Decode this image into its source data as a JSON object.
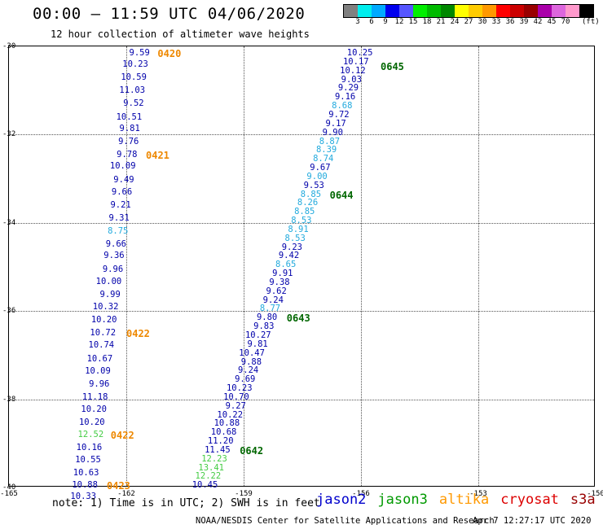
{
  "header": {
    "title": "00:00 – 11:59 UTC 04/06/2020",
    "subtitle": "12 hour collection of altimeter wave heights"
  },
  "color_scale": {
    "unit": "(ft)",
    "colors": [
      "#808080",
      "#00eeee",
      "#00aaff",
      "#0000ee",
      "#5555ff",
      "#00ee00",
      "#00bb00",
      "#008800",
      "#ffff00",
      "#ffcc00",
      "#ff9900",
      "#ff0000",
      "#cc0000",
      "#990000",
      "#aa00aa",
      "#dd66dd",
      "#ff99cc",
      "#000000"
    ],
    "labels": [
      "3",
      "6",
      "9",
      "12",
      "15",
      "18",
      "21",
      "24",
      "27",
      "30",
      "33",
      "36",
      "39",
      "42",
      "45",
      "70"
    ]
  },
  "map": {
    "lon_range": [
      -165,
      -150
    ],
    "lat_range": [
      -40,
      -30
    ],
    "lon_ticks": [
      "-165",
      "-162",
      "-159",
      "-156",
      "-153",
      "-150"
    ],
    "lat_ticks": [
      "-30",
      "-32",
      "-34",
      "-36",
      "-38",
      "-40"
    ],
    "colors": {
      "dark_blue": "#0000aa",
      "light_blue": "#22aadd",
      "green": "#44cc44",
      "orange": "#ee8800",
      "dark_green": "#006600"
    },
    "tracks": [
      {
        "satellite": "altika",
        "points": [
          {
            "lon": -161.4,
            "lat": -30.15,
            "v": "9.59",
            "c": "dark_blue"
          },
          {
            "lon": -161.44,
            "lat": -30.4,
            "v": "10.23",
            "c": "dark_blue"
          },
          {
            "lon": -161.48,
            "lat": -30.7,
            "v": "10.59",
            "c": "dark_blue"
          },
          {
            "lon": -161.52,
            "lat": -31.0,
            "v": "11.03",
            "c": "dark_blue"
          },
          {
            "lon": -161.55,
            "lat": -31.3,
            "v": "9.52",
            "c": "dark_blue"
          },
          {
            "lon": -161.6,
            "lat": -31.6,
            "v": "10.51",
            "c": "dark_blue"
          },
          {
            "lon": -161.65,
            "lat": -31.87,
            "v": "9.81",
            "c": "dark_blue"
          },
          {
            "lon": -161.68,
            "lat": -32.15,
            "v": "9.76",
            "c": "dark_blue"
          },
          {
            "lon": -161.72,
            "lat": -32.45,
            "v": "9.78",
            "c": "dark_blue"
          },
          {
            "lon": -161.76,
            "lat": -32.72,
            "v": "10.09",
            "c": "dark_blue"
          },
          {
            "lon": -161.8,
            "lat": -33.02,
            "v": "9.49",
            "c": "dark_blue"
          },
          {
            "lon": -161.85,
            "lat": -33.3,
            "v": "9.66",
            "c": "dark_blue"
          },
          {
            "lon": -161.88,
            "lat": -33.6,
            "v": "9.21",
            "c": "dark_blue"
          },
          {
            "lon": -161.92,
            "lat": -33.9,
            "v": "9.31",
            "c": "dark_blue"
          },
          {
            "lon": -161.95,
            "lat": -34.18,
            "v": "8.75",
            "c": "light_blue"
          },
          {
            "lon": -162.0,
            "lat": -34.48,
            "v": "9.66",
            "c": "dark_blue"
          },
          {
            "lon": -162.05,
            "lat": -34.75,
            "v": "9.36",
            "c": "dark_blue"
          },
          {
            "lon": -162.08,
            "lat": -35.05,
            "v": "9.96",
            "c": "dark_blue"
          },
          {
            "lon": -162.12,
            "lat": -35.33,
            "v": "10.00",
            "c": "dark_blue"
          },
          {
            "lon": -162.15,
            "lat": -35.63,
            "v": "9.99",
            "c": "dark_blue"
          },
          {
            "lon": -162.2,
            "lat": -35.9,
            "v": "10.32",
            "c": "dark_blue"
          },
          {
            "lon": -162.24,
            "lat": -36.2,
            "v": "10.20",
            "c": "dark_blue"
          },
          {
            "lon": -162.27,
            "lat": -36.5,
            "v": "10.72",
            "c": "dark_blue"
          },
          {
            "lon": -162.31,
            "lat": -36.78,
            "v": "10.74",
            "c": "dark_blue"
          },
          {
            "lon": -162.35,
            "lat": -37.08,
            "v": "10.67",
            "c": "dark_blue"
          },
          {
            "lon": -162.4,
            "lat": -37.36,
            "v": "10.09",
            "c": "dark_blue"
          },
          {
            "lon": -162.43,
            "lat": -37.65,
            "v": "9.96",
            "c": "dark_blue"
          },
          {
            "lon": -162.47,
            "lat": -37.95,
            "v": "11.18",
            "c": "dark_blue"
          },
          {
            "lon": -162.5,
            "lat": -38.22,
            "v": "10.20",
            "c": "dark_blue"
          },
          {
            "lon": -162.55,
            "lat": -38.52,
            "v": "10.20",
            "c": "dark_blue"
          },
          {
            "lon": -162.58,
            "lat": -38.8,
            "v": "12.52",
            "c": "green"
          },
          {
            "lon": -162.62,
            "lat": -39.1,
            "v": "10.16",
            "c": "dark_blue"
          },
          {
            "lon": -162.65,
            "lat": -39.38,
            "v": "10.55",
            "c": "dark_blue"
          },
          {
            "lon": -162.7,
            "lat": -39.66,
            "v": "10.63",
            "c": "dark_blue"
          },
          {
            "lon": -162.73,
            "lat": -39.95,
            "v": "10.88",
            "c": "dark_blue"
          },
          {
            "lon": -162.77,
            "lat": -40.2,
            "v": "10.33",
            "c": "dark_blue"
          }
        ]
      },
      {
        "satellite": "jason3",
        "points": [
          {
            "lon": -155.7,
            "lat": -30.15,
            "v": "10.25",
            "c": "dark_blue"
          },
          {
            "lon": -155.8,
            "lat": -30.35,
            "v": "10.17",
            "c": "dark_blue"
          },
          {
            "lon": -155.88,
            "lat": -30.55,
            "v": "10.12",
            "c": "dark_blue"
          },
          {
            "lon": -155.98,
            "lat": -30.75,
            "v": "9.03",
            "c": "dark_blue"
          },
          {
            "lon": -156.06,
            "lat": -30.95,
            "v": "9.29",
            "c": "dark_blue"
          },
          {
            "lon": -156.14,
            "lat": -31.15,
            "v": "9.16",
            "c": "dark_blue"
          },
          {
            "lon": -156.22,
            "lat": -31.35,
            "v": "8.68",
            "c": "light_blue"
          },
          {
            "lon": -156.3,
            "lat": -31.55,
            "v": "9.72",
            "c": "dark_blue"
          },
          {
            "lon": -156.38,
            "lat": -31.75,
            "v": "9.17",
            "c": "dark_blue"
          },
          {
            "lon": -156.46,
            "lat": -31.95,
            "v": "9.90",
            "c": "dark_blue"
          },
          {
            "lon": -156.54,
            "lat": -32.15,
            "v": "8.87",
            "c": "light_blue"
          },
          {
            "lon": -156.62,
            "lat": -32.35,
            "v": "8.39",
            "c": "light_blue"
          },
          {
            "lon": -156.7,
            "lat": -32.55,
            "v": "8.74",
            "c": "light_blue"
          },
          {
            "lon": -156.78,
            "lat": -32.75,
            "v": "9.67",
            "c": "dark_blue"
          },
          {
            "lon": -156.86,
            "lat": -32.95,
            "v": "9.00",
            "c": "light_blue"
          },
          {
            "lon": -156.94,
            "lat": -33.15,
            "v": "9.53",
            "c": "dark_blue"
          },
          {
            "lon": -157.02,
            "lat": -33.35,
            "v": "8.85",
            "c": "light_blue"
          },
          {
            "lon": -157.1,
            "lat": -33.55,
            "v": "8.26",
            "c": "light_blue"
          },
          {
            "lon": -157.18,
            "lat": -33.75,
            "v": "8.85",
            "c": "light_blue"
          },
          {
            "lon": -157.26,
            "lat": -33.95,
            "v": "8.53",
            "c": "light_blue"
          },
          {
            "lon": -157.34,
            "lat": -34.15,
            "v": "8.91",
            "c": "light_blue"
          },
          {
            "lon": -157.42,
            "lat": -34.35,
            "v": "8.53",
            "c": "light_blue"
          },
          {
            "lon": -157.5,
            "lat": -34.55,
            "v": "9.23",
            "c": "dark_blue"
          },
          {
            "lon": -157.58,
            "lat": -34.75,
            "v": "9.42",
            "c": "dark_blue"
          },
          {
            "lon": -157.66,
            "lat": -34.95,
            "v": "8.65",
            "c": "light_blue"
          },
          {
            "lon": -157.74,
            "lat": -35.15,
            "v": "9.91",
            "c": "dark_blue"
          },
          {
            "lon": -157.82,
            "lat": -35.35,
            "v": "9.38",
            "c": "dark_blue"
          },
          {
            "lon": -157.9,
            "lat": -35.55,
            "v": "9.62",
            "c": "dark_blue"
          },
          {
            "lon": -157.98,
            "lat": -35.75,
            "v": "9.24",
            "c": "dark_blue"
          },
          {
            "lon": -158.06,
            "lat": -35.95,
            "v": "8.77",
            "c": "light_blue"
          },
          {
            "lon": -158.14,
            "lat": -36.15,
            "v": "9.80",
            "c": "dark_blue"
          },
          {
            "lon": -158.22,
            "lat": -36.35,
            "v": "9.83",
            "c": "dark_blue"
          },
          {
            "lon": -158.3,
            "lat": -36.55,
            "v": "10.27",
            "c": "dark_blue"
          },
          {
            "lon": -158.38,
            "lat": -36.75,
            "v": "9.81",
            "c": "dark_blue"
          },
          {
            "lon": -158.46,
            "lat": -36.95,
            "v": "10.47",
            "c": "dark_blue"
          },
          {
            "lon": -158.54,
            "lat": -37.15,
            "v": "9.88",
            "c": "dark_blue"
          },
          {
            "lon": -158.62,
            "lat": -37.35,
            "v": "9.24",
            "c": "dark_blue"
          },
          {
            "lon": -158.7,
            "lat": -37.55,
            "v": "9.69",
            "c": "dark_blue"
          },
          {
            "lon": -158.78,
            "lat": -37.75,
            "v": "10.23",
            "c": "dark_blue"
          },
          {
            "lon": -158.86,
            "lat": -37.95,
            "v": "10.70",
            "c": "dark_blue"
          },
          {
            "lon": -158.94,
            "lat": -38.15,
            "v": "9.27",
            "c": "dark_blue"
          },
          {
            "lon": -159.02,
            "lat": -38.35,
            "v": "10.22",
            "c": "dark_blue"
          },
          {
            "lon": -159.1,
            "lat": -38.55,
            "v": "10.88",
            "c": "dark_blue"
          },
          {
            "lon": -159.18,
            "lat": -38.75,
            "v": "10.68",
            "c": "dark_blue"
          },
          {
            "lon": -159.26,
            "lat": -38.95,
            "v": "11.20",
            "c": "dark_blue"
          },
          {
            "lon": -159.34,
            "lat": -39.15,
            "v": "11.45",
            "c": "dark_blue"
          },
          {
            "lon": -159.42,
            "lat": -39.35,
            "v": "12.23",
            "c": "green"
          },
          {
            "lon": -159.5,
            "lat": -39.55,
            "v": "13.41",
            "c": "green"
          },
          {
            "lon": -159.58,
            "lat": -39.75,
            "v": "12.22",
            "c": "green"
          },
          {
            "lon": -159.66,
            "lat": -39.95,
            "v": "10.45",
            "c": "dark_blue"
          }
        ]
      }
    ],
    "pass_labels": [
      {
        "lon": -161.2,
        "lat": -30.15,
        "text": "0420",
        "c": "orange"
      },
      {
        "lon": -161.5,
        "lat": -32.45,
        "text": "0421",
        "c": "orange"
      },
      {
        "lon": -162.0,
        "lat": -36.5,
        "text": "0422",
        "c": "orange"
      },
      {
        "lon": -162.4,
        "lat": -38.8,
        "text": "0422",
        "c": "orange"
      },
      {
        "lon": -162.5,
        "lat": -39.95,
        "text": "0423",
        "c": "orange"
      },
      {
        "lon": -155.5,
        "lat": -30.45,
        "text": "0645",
        "c": "dark_green"
      },
      {
        "lon": -156.8,
        "lat": -33.35,
        "text": "0644",
        "c": "dark_green"
      },
      {
        "lon": -157.9,
        "lat": -36.15,
        "text": "0643",
        "c": "dark_green"
      },
      {
        "lon": -159.1,
        "lat": -39.15,
        "text": "0642",
        "c": "dark_green"
      }
    ]
  },
  "note": "note: 1) Time is in UTC; 2) SWH is in feet",
  "legend": [
    {
      "name": "jason2",
      "color": "#0000cc"
    },
    {
      "name": "jason3",
      "color": "#009900"
    },
    {
      "name": "altika",
      "color": "#ff9900"
    },
    {
      "name": "cryosat",
      "color": "#dd0000"
    },
    {
      "name": "s3a",
      "color": "#990000"
    }
  ],
  "footer": {
    "credit": "NOAA/NESDIS Center for Satellite Applications and Research",
    "timestamp": "Apr  7 12:27:17 UTC 2020"
  }
}
